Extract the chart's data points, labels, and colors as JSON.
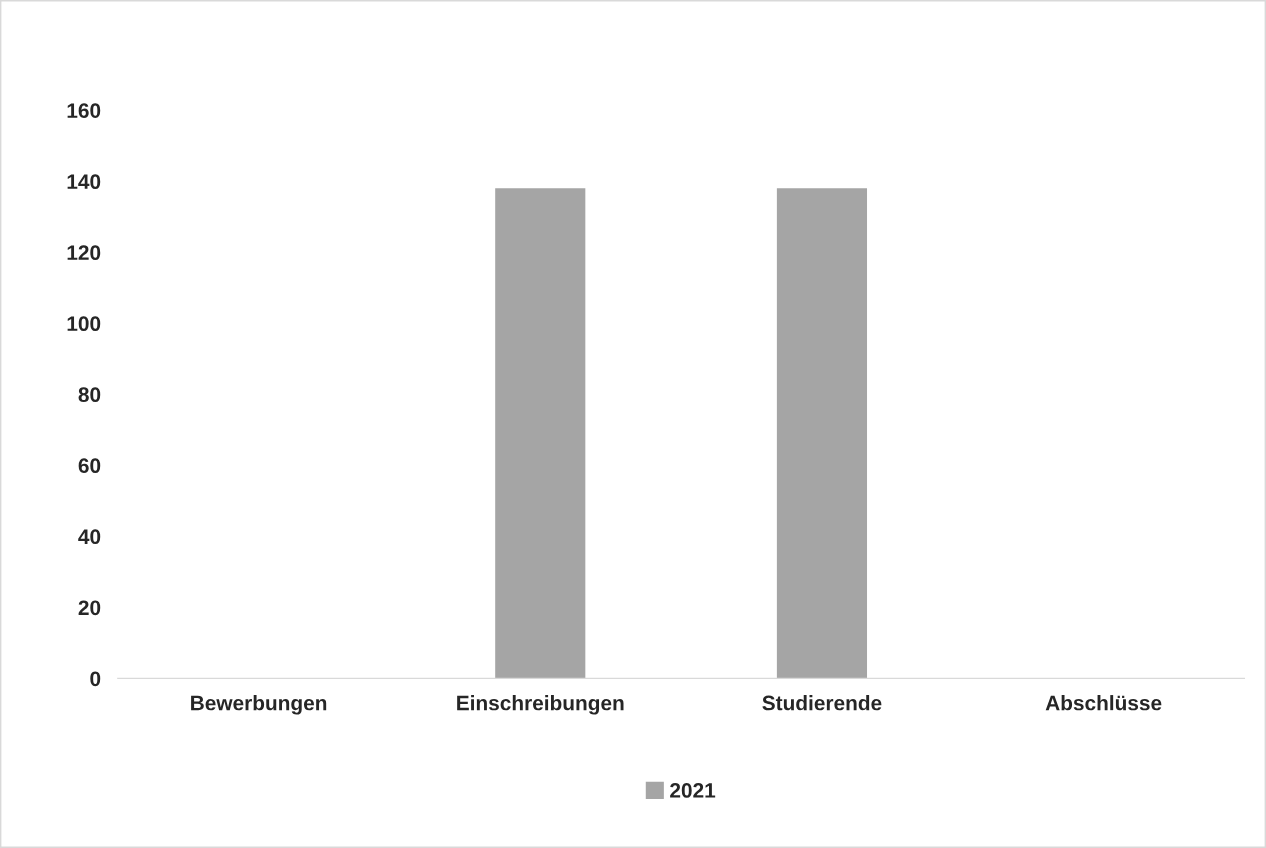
{
  "chart_data": {
    "type": "bar",
    "categories": [
      "Bewerbungen",
      "Einschreibungen",
      "Studierende",
      "Abschlüsse"
    ],
    "series": [
      {
        "name": "2021",
        "color": "#a5a5a5",
        "values": [
          0,
          138,
          138,
          0
        ]
      }
    ],
    "ylim": [
      0,
      160
    ],
    "yticks": [
      0,
      20,
      40,
      60,
      80,
      100,
      120,
      140,
      160
    ],
    "grid": false,
    "legend": "bottom"
  }
}
